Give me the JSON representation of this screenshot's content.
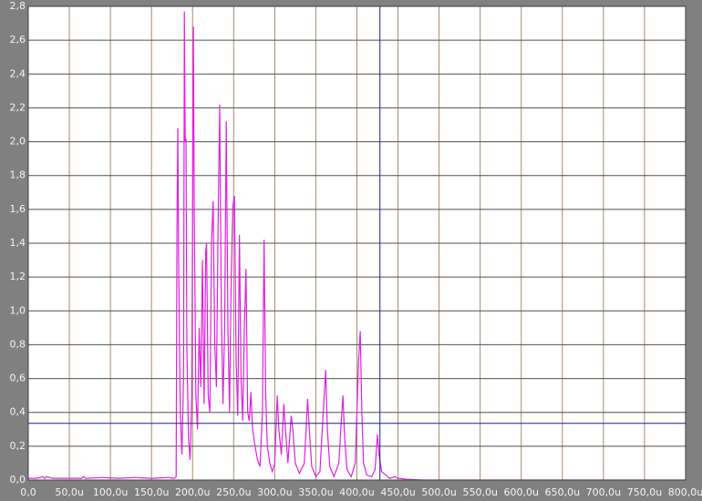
{
  "chart_data": {
    "type": "line",
    "color": "#e020e0",
    "grid": true,
    "xlim": [
      0,
      800
    ],
    "ylim": [
      0,
      2.8
    ],
    "xticks": [
      {
        "value": 0,
        "label": "0,0"
      },
      {
        "value": 50,
        "label": "50,0u"
      },
      {
        "value": 100,
        "label": "100,0u"
      },
      {
        "value": 150,
        "label": "150,0u"
      },
      {
        "value": 200,
        "label": "200,0u"
      },
      {
        "value": 250,
        "label": "250,0u"
      },
      {
        "value": 300,
        "label": "300,0u"
      },
      {
        "value": 350,
        "label": "350,0u"
      },
      {
        "value": 400,
        "label": "400,0u"
      },
      {
        "value": 450,
        "label": "450,0u"
      },
      {
        "value": 500,
        "label": "500,0u"
      },
      {
        "value": 550,
        "label": "550,0u"
      },
      {
        "value": 600,
        "label": "600,0u"
      },
      {
        "value": 650,
        "label": "650,0u"
      },
      {
        "value": 700,
        "label": "700,0u"
      },
      {
        "value": 750,
        "label": "750,0u"
      },
      {
        "value": 800,
        "label": "800,0u"
      }
    ],
    "yticks": [
      {
        "value": 0,
        "label": "0,0"
      },
      {
        "value": 0.2,
        "label": "0,2"
      },
      {
        "value": 0.4,
        "label": "0,4"
      },
      {
        "value": 0.6,
        "label": "0,6"
      },
      {
        "value": 0.8,
        "label": "0,8"
      },
      {
        "value": 1.0,
        "label": "1,0"
      },
      {
        "value": 1.2,
        "label": "1,2"
      },
      {
        "value": 1.4,
        "label": "1,4"
      },
      {
        "value": 1.6,
        "label": "1,6"
      },
      {
        "value": 1.8,
        "label": "1,8"
      },
      {
        "value": 2.0,
        "label": "2,0"
      },
      {
        "value": 2.2,
        "label": "2,2"
      },
      {
        "value": 2.4,
        "label": "2,4"
      },
      {
        "value": 2.6,
        "label": "2,6"
      },
      {
        "value": 2.8,
        "label": "2,8"
      }
    ],
    "cursor_x": 428,
    "cursor_y": 0.335,
    "cursor_color": "#1a1aa0",
    "x": [
      0,
      10,
      18,
      20,
      22,
      30,
      50,
      65,
      67,
      70,
      90,
      110,
      130,
      150,
      170,
      178,
      180,
      181,
      182,
      183,
      185,
      187,
      189,
      190,
      191,
      192,
      193,
      195,
      197,
      199,
      201,
      202,
      204,
      206,
      208,
      210,
      212,
      214,
      216,
      217,
      219,
      221,
      223,
      225,
      227,
      229,
      231,
      233,
      235,
      237,
      239,
      241,
      243,
      245,
      247,
      249,
      251,
      253,
      255,
      257,
      259,
      261,
      263,
      265,
      267,
      269,
      271,
      273,
      276,
      279,
      282,
      285,
      287,
      289,
      291,
      294,
      297,
      300,
      303,
      305,
      308,
      311,
      313,
      316,
      320,
      322,
      325,
      330,
      336,
      340,
      342,
      345,
      350,
      355,
      359,
      362,
      364,
      367,
      372,
      378,
      381,
      383,
      385,
      388,
      393,
      398,
      402,
      404,
      406,
      408,
      412,
      418,
      422,
      425,
      427,
      430,
      435,
      440,
      446,
      450,
      460,
      480,
      600,
      800
    ],
    "values": [
      0.01,
      0.01,
      0.02,
      0.01,
      0.02,
      0.01,
      0.01,
      0.01,
      0.02,
      0.01,
      0.015,
      0.01,
      0.015,
      0.01,
      0.015,
      0.01,
      0.02,
      1.5,
      2.08,
      1.3,
      0.4,
      0.15,
      0.6,
      2.77,
      2.0,
      2.02,
      0.8,
      0.25,
      0.12,
      0.5,
      2.68,
      1.6,
      0.5,
      0.3,
      0.9,
      0.55,
      1.3,
      0.45,
      1.35,
      1.4,
      0.5,
      0.4,
      1.4,
      1.65,
      0.8,
      0.55,
      1.5,
      2.22,
      1.0,
      0.45,
      0.9,
      2.12,
      0.9,
      0.4,
      1.2,
      1.62,
      1.68,
      0.7,
      0.38,
      1.45,
      0.6,
      0.35,
      0.9,
      1.25,
      0.4,
      0.35,
      0.52,
      0.3,
      0.2,
      0.12,
      0.08,
      0.4,
      1.42,
      0.5,
      0.2,
      0.1,
      0.05,
      0.1,
      0.5,
      0.3,
      0.15,
      0.45,
      0.3,
      0.1,
      0.38,
      0.3,
      0.1,
      0.04,
      0.1,
      0.48,
      0.3,
      0.08,
      0.02,
      0.05,
      0.4,
      0.65,
      0.3,
      0.08,
      0.02,
      0.1,
      0.35,
      0.5,
      0.25,
      0.06,
      0.02,
      0.1,
      0.7,
      0.88,
      0.4,
      0.1,
      0.03,
      0.02,
      0.06,
      0.27,
      0.15,
      0.05,
      0.03,
      0.01,
      0.02,
      0.01,
      0.005,
      0,
      0,
      0
    ]
  }
}
